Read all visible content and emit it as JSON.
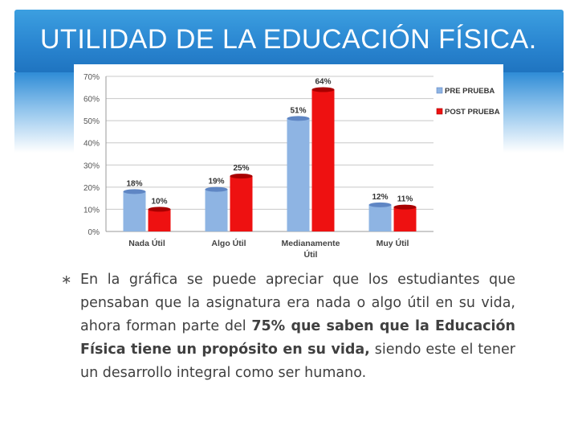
{
  "slide": {
    "title": "UTILIDAD DE LA EDUCACIÓN FÍSICA."
  },
  "chart_data": {
    "type": "bar",
    "categories": [
      "Nada Útil",
      "Algo Útil",
      "Medianamente Útil",
      "Muy Útil"
    ],
    "series": [
      {
        "name": "PRE PRUEBA",
        "values": [
          18,
          19,
          51,
          12
        ],
        "labels": [
          "18%",
          "19%",
          "51%",
          "12%"
        ],
        "color": "#8eb4e3"
      },
      {
        "name": "POST PRUEBA",
        "values": [
          10,
          25,
          64,
          11
        ],
        "labels": [
          "10%",
          "25%",
          "64%",
          "11%"
        ],
        "color": "#ee1111"
      }
    ],
    "yticks": [
      "0%",
      "10%",
      "20%",
      "30%",
      "40%",
      "50%",
      "60%",
      "70%"
    ],
    "ylim": [
      0,
      70
    ],
    "grid": true,
    "legend_position": "right"
  },
  "text": {
    "bullet": "∗",
    "part1": "En la  gráfica se puede apreciar que los estudiantes que pensaban  que la asignatura era nada o algo útil en su vida, ahora forman parte del ",
    "bold": "75% que saben que la Educación Física tiene un propósito  en su vida,",
    "part2": " siendo este el tener un desarrollo integral como ser humano."
  }
}
